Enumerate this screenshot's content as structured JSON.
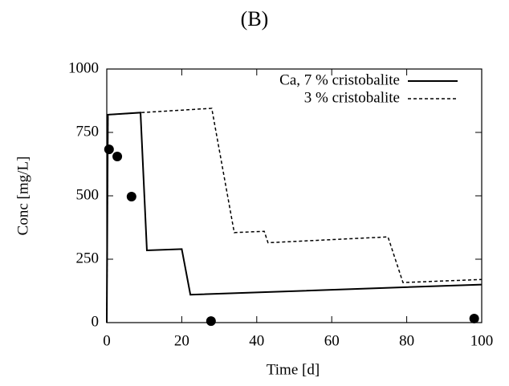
{
  "chart_data": {
    "type": "line",
    "title": "(B)",
    "x_label": "Time [d]",
    "y_label": "Conc [mg/L]",
    "xlim": [
      0,
      100
    ],
    "xticks": [
      0,
      20,
      40,
      60,
      80,
      100
    ],
    "ylim": [
      0,
      1000
    ],
    "yticks": [
      0,
      250,
      500,
      750,
      1000
    ],
    "legend": "upper right",
    "series": [
      {
        "name": "Ca, 7 % cristobalite",
        "color": "#000000",
        "dash": false,
        "x": [
          0,
          0.3,
          9,
          10.7,
          20,
          22.3,
          100
        ],
        "values": [
          0,
          820,
          828,
          285,
          290,
          110,
          150
        ]
      },
      {
        "name": "3 % cristobalite",
        "color": "#000000",
        "dash": true,
        "x": [
          0,
          0.3,
          9,
          28,
          34,
          42,
          43,
          75,
          79,
          100
        ],
        "values": [
          0,
          820,
          828,
          845,
          355,
          360,
          315,
          338,
          158,
          170
        ]
      }
    ],
    "points": {
      "color": "#000000",
      "x": [
        0.6,
        2.8,
        6.6,
        27.8,
        98
      ],
      "values": [
        683,
        655,
        497,
        6,
        16
      ]
    }
  }
}
